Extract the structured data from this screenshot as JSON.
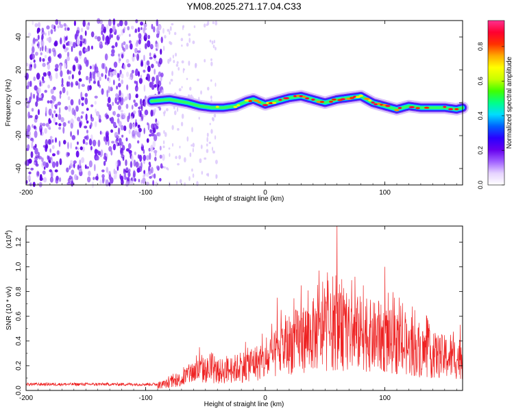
{
  "title": "YM08.2025.271.17.04.C33",
  "chart_data": [
    {
      "type": "heatmap",
      "xlabel": "Height of straight line (km)",
      "ylabel": "Frequency (Hz)",
      "xlim": [
        -200,
        165
      ],
      "ylim": [
        -50,
        50
      ],
      "x_ticks": [
        -200,
        -100,
        0,
        100
      ],
      "y_ticks": [
        -40,
        -20,
        0,
        20,
        40
      ],
      "noise_region_x": [
        -200,
        -85
      ],
      "sparse_region_x": [
        -85,
        -40
      ],
      "ridge_start_x": -95,
      "ridge": [
        {
          "x": -95,
          "y": 1
        },
        {
          "x": -80,
          "y": 2
        },
        {
          "x": -65,
          "y": 0
        },
        {
          "x": -55,
          "y": -2
        },
        {
          "x": -45,
          "y": -3
        },
        {
          "x": -35,
          "y": -3
        },
        {
          "x": -25,
          "y": -2
        },
        {
          "x": -15,
          "y": 1
        },
        {
          "x": -10,
          "y": 2
        },
        {
          "x": 0,
          "y": -1
        },
        {
          "x": 10,
          "y": 1
        },
        {
          "x": 20,
          "y": 3
        },
        {
          "x": 30,
          "y": 4
        },
        {
          "x": 40,
          "y": 2
        },
        {
          "x": 50,
          "y": 0
        },
        {
          "x": 60,
          "y": 2
        },
        {
          "x": 70,
          "y": 3
        },
        {
          "x": 80,
          "y": 4
        },
        {
          "x": 90,
          "y": 0
        },
        {
          "x": 100,
          "y": -2
        },
        {
          "x": 110,
          "y": -4
        },
        {
          "x": 120,
          "y": -2
        },
        {
          "x": 130,
          "y": -3
        },
        {
          "x": 140,
          "y": -3
        },
        {
          "x": 150,
          "y": -3
        },
        {
          "x": 160,
          "y": -4
        },
        {
          "x": 165,
          "y": -3
        }
      ],
      "colorbar": {
        "label": "Normalized spectral amplitude",
        "range": [
          0,
          0.95
        ],
        "ticks": [
          "0.0",
          "0.2",
          "0.4",
          "0.6",
          "0.8"
        ],
        "tick_values": [
          0,
          0.2,
          0.4,
          0.6,
          0.8
        ],
        "colors": [
          "#ffffff",
          "#e6d3ff",
          "#a060ff",
          "#6600ee",
          "#2a00ff",
          "#0060ff",
          "#00ddff",
          "#00ff88",
          "#40ff00",
          "#c8ff00",
          "#ffff00",
          "#ffaa00",
          "#ff3000",
          "#ff0030",
          "#ff3090"
        ]
      }
    },
    {
      "type": "line",
      "xlabel": "Height of straight line (km)",
      "ylabel": "SNR (10 * v/v)",
      "y_multiplier": "(x10",
      "y_multiplier_exp": "4",
      "y_multiplier_close": ")",
      "xlim": [
        -200,
        165
      ],
      "ylim": [
        0,
        1.33
      ],
      "x_ticks": [
        -200,
        -100,
        0,
        100
      ],
      "y_ticks": [
        0.0,
        0.2,
        0.4,
        0.6,
        0.8,
        1.0,
        1.2
      ],
      "y_tick_labels": [
        "0.0",
        "0.2",
        "0.4",
        "0.6",
        "0.8",
        "1.0",
        "1.2"
      ],
      "color": "#ee2222",
      "baseline_region": {
        "x": [
          -200,
          -90
        ],
        "y": 0.05
      },
      "envelope": [
        {
          "x": -200,
          "y": 0.05
        },
        {
          "x": -90,
          "y": 0.05
        },
        {
          "x": -80,
          "y": 0.08
        },
        {
          "x": -70,
          "y": 0.12
        },
        {
          "x": -60,
          "y": 0.2
        },
        {
          "x": -50,
          "y": 0.22
        },
        {
          "x": -40,
          "y": 0.2
        },
        {
          "x": -30,
          "y": 0.22
        },
        {
          "x": -20,
          "y": 0.25
        },
        {
          "x": -10,
          "y": 0.3
        },
        {
          "x": 0,
          "y": 0.3
        },
        {
          "x": 10,
          "y": 0.4
        },
        {
          "x": 20,
          "y": 0.5
        },
        {
          "x": 30,
          "y": 0.55
        },
        {
          "x": 40,
          "y": 0.6
        },
        {
          "x": 50,
          "y": 0.62
        },
        {
          "x": 60,
          "y": 0.65
        },
        {
          "x": 70,
          "y": 0.6
        },
        {
          "x": 80,
          "y": 0.62
        },
        {
          "x": 90,
          "y": 0.58
        },
        {
          "x": 100,
          "y": 0.55
        },
        {
          "x": 110,
          "y": 0.5
        },
        {
          "x": 120,
          "y": 0.45
        },
        {
          "x": 130,
          "y": 0.42
        },
        {
          "x": 140,
          "y": 0.38
        },
        {
          "x": 150,
          "y": 0.36
        },
        {
          "x": 160,
          "y": 0.35
        },
        {
          "x": 165,
          "y": 0.35
        }
      ],
      "peaks": [
        {
          "x": -55,
          "y": 0.35
        },
        {
          "x": 10,
          "y": 0.75
        },
        {
          "x": 30,
          "y": 0.85
        },
        {
          "x": 45,
          "y": 0.97
        },
        {
          "x": 48,
          "y": 0.88
        },
        {
          "x": 60,
          "y": 1.33
        },
        {
          "x": 64,
          "y": 0.9
        },
        {
          "x": 75,
          "y": 0.92
        },
        {
          "x": 82,
          "y": 0.85
        },
        {
          "x": 100,
          "y": 1.0
        },
        {
          "x": 108,
          "y": 0.75
        },
        {
          "x": 125,
          "y": 0.65
        },
        {
          "x": 135,
          "y": 0.6
        },
        {
          "x": 155,
          "y": 0.45
        }
      ]
    }
  ]
}
